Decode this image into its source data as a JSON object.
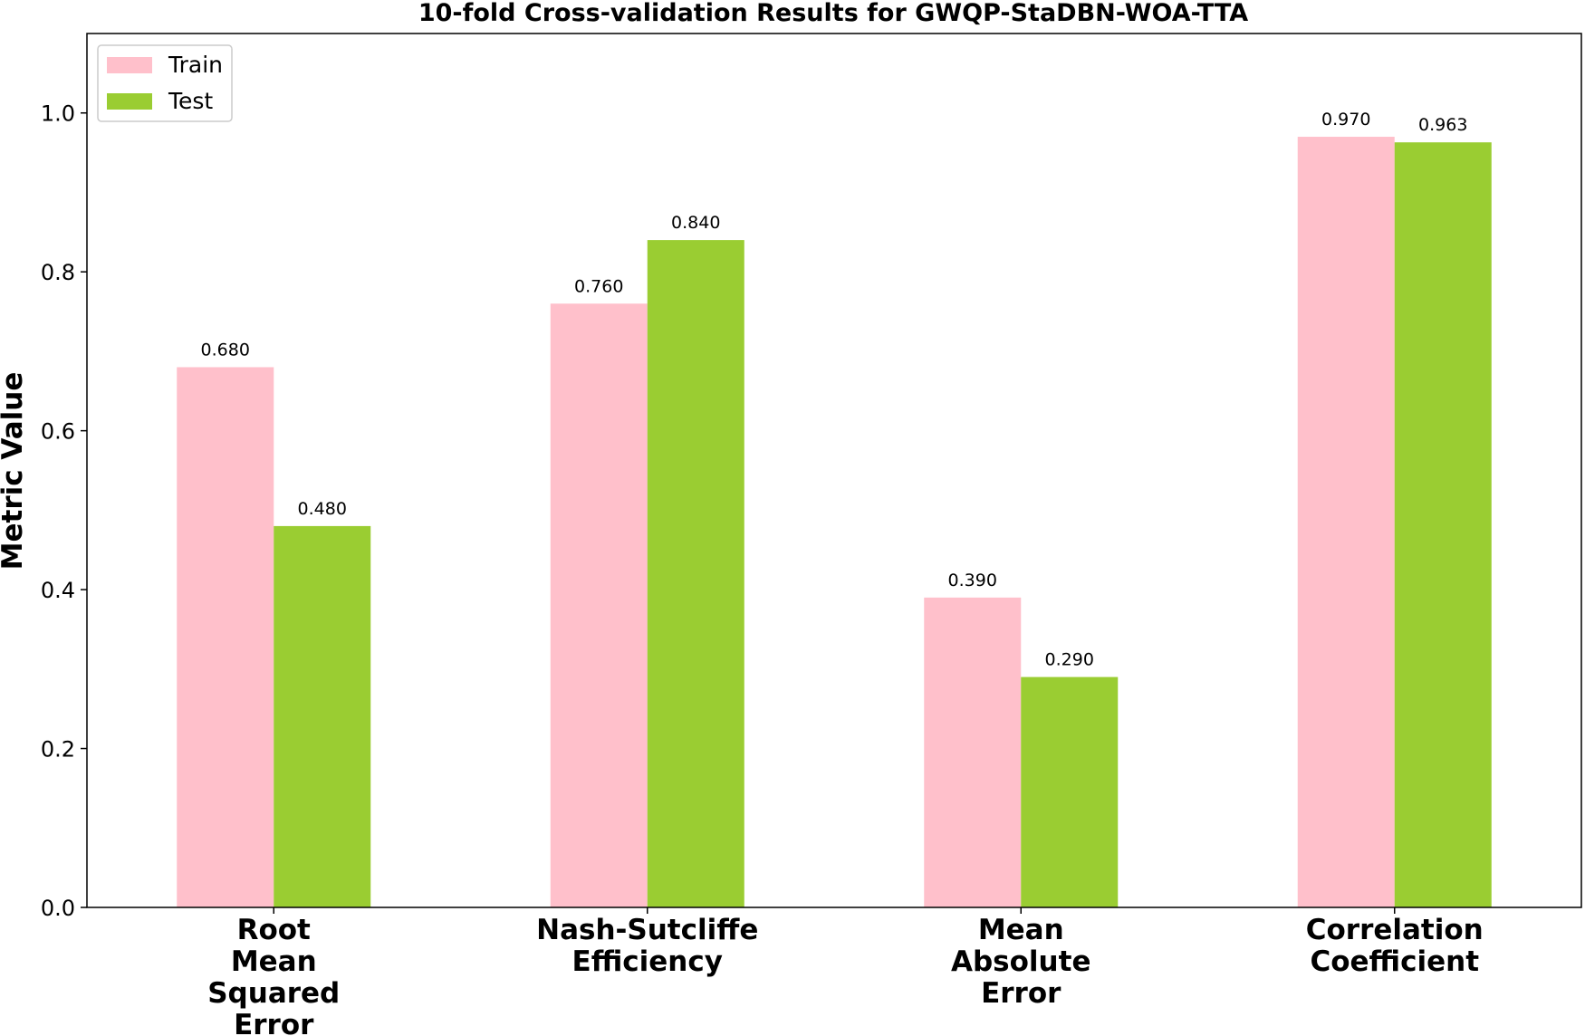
{
  "chart_data": {
    "type": "bar",
    "title": "10-fold Cross-validation Results for GWQP-StaDBN-WOA-TTA",
    "xlabel": "",
    "ylabel": "Metric Value",
    "ylim": [
      0,
      1.1
    ],
    "yticks": [
      "0.0",
      "0.2",
      "0.4",
      "0.6",
      "0.8",
      "1.0"
    ],
    "grid": false,
    "legend_position": "top-left",
    "categories": [
      [
        "Root",
        "Mean",
        "Squared",
        "Error"
      ],
      [
        "Nash-Sutcliffe",
        "Efficiency"
      ],
      [
        "Mean",
        "Absolute",
        "Error"
      ],
      [
        "Correlation",
        "Coefficient"
      ]
    ],
    "series": [
      {
        "name": "Train",
        "color": "#ffc0cb",
        "values": [
          0.68,
          0.76,
          0.39,
          0.97
        ],
        "labels": [
          "0.680",
          "0.760",
          "0.390",
          "0.970"
        ]
      },
      {
        "name": "Test",
        "color": "#9acd32",
        "values": [
          0.48,
          0.84,
          0.29,
          0.963
        ],
        "labels": [
          "0.480",
          "0.840",
          "0.290",
          "0.963"
        ]
      }
    ]
  }
}
